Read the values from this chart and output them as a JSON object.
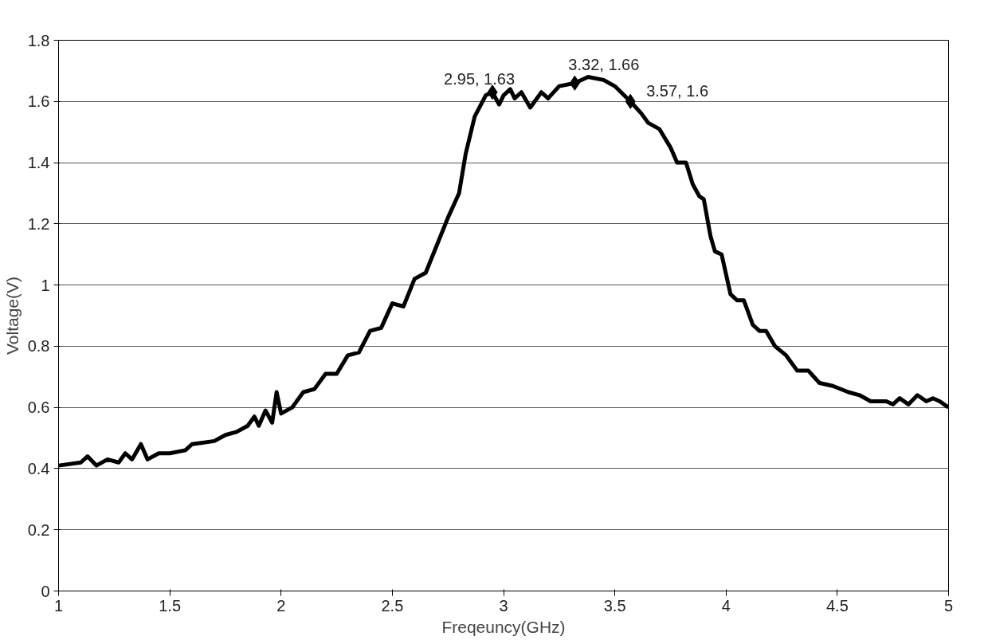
{
  "chart_data": {
    "type": "line",
    "xlabel": "Freqeuncy(GHz)",
    "ylabel": "Voltage(V)",
    "xlim": [
      1,
      5
    ],
    "ylim": [
      0,
      1.8
    ],
    "xticks": [
      1,
      1.5,
      2,
      2.5,
      3,
      3.5,
      4,
      4.5,
      5
    ],
    "yticks": [
      0,
      0.2,
      0.4,
      0.6,
      0.8,
      1,
      1.2,
      1.4,
      1.6,
      1.8
    ],
    "grid": "y",
    "line_style": "solid",
    "series": [
      {
        "color": "#000000",
        "marker": "none",
        "x": [
          1.0,
          1.1,
          1.13,
          1.17,
          1.22,
          1.27,
          1.3,
          1.33,
          1.37,
          1.4,
          1.45,
          1.5,
          1.57,
          1.6,
          1.7,
          1.75,
          1.8,
          1.85,
          1.88,
          1.9,
          1.93,
          1.96,
          1.98,
          2.0,
          2.05,
          2.1,
          2.15,
          2.2,
          2.25,
          2.3,
          2.35,
          2.4,
          2.45,
          2.5,
          2.55,
          2.6,
          2.65,
          2.7,
          2.75,
          2.8,
          2.83,
          2.87,
          2.92,
          2.95,
          2.98,
          3.0,
          3.03,
          3.05,
          3.08,
          3.12,
          3.17,
          3.2,
          3.25,
          3.32,
          3.38,
          3.45,
          3.5,
          3.57,
          3.62,
          3.65,
          3.7,
          3.75,
          3.78,
          3.82,
          3.85,
          3.88,
          3.9,
          3.93,
          3.95,
          3.98,
          4.02,
          4.05,
          4.08,
          4.12,
          4.15,
          4.18,
          4.22,
          4.27,
          4.32,
          4.37,
          4.42,
          4.48,
          4.55,
          4.6,
          4.65,
          4.72,
          4.75,
          4.78,
          4.82,
          4.86,
          4.9,
          4.93,
          4.96,
          5.0
        ],
        "values": [
          0.41,
          0.42,
          0.44,
          0.41,
          0.43,
          0.42,
          0.45,
          0.43,
          0.48,
          0.43,
          0.45,
          0.45,
          0.46,
          0.48,
          0.49,
          0.51,
          0.52,
          0.54,
          0.57,
          0.54,
          0.59,
          0.55,
          0.65,
          0.58,
          0.6,
          0.65,
          0.66,
          0.71,
          0.71,
          0.77,
          0.78,
          0.85,
          0.86,
          0.94,
          0.93,
          1.02,
          1.04,
          1.13,
          1.22,
          1.3,
          1.43,
          1.55,
          1.62,
          1.63,
          1.59,
          1.62,
          1.64,
          1.61,
          1.63,
          1.58,
          1.63,
          1.61,
          1.65,
          1.66,
          1.68,
          1.67,
          1.65,
          1.6,
          1.56,
          1.53,
          1.51,
          1.45,
          1.4,
          1.4,
          1.33,
          1.29,
          1.28,
          1.16,
          1.11,
          1.1,
          0.97,
          0.95,
          0.95,
          0.87,
          0.85,
          0.85,
          0.8,
          0.77,
          0.72,
          0.72,
          0.68,
          0.67,
          0.65,
          0.64,
          0.62,
          0.62,
          0.61,
          0.63,
          0.61,
          0.64,
          0.62,
          0.63,
          0.62,
          0.6
        ]
      },
      {
        "type": "scatter",
        "color": "#000000",
        "marker": "diamond",
        "x": [
          2.95,
          3.32,
          3.57
        ],
        "values": [
          1.63,
          1.66,
          1.6
        ]
      }
    ],
    "annotations": [
      {
        "text": "2.95, 1.63",
        "x": 2.95,
        "y": 1.63
      },
      {
        "text": "3.32, 1.66",
        "x": 3.32,
        "y": 1.66
      },
      {
        "text": "3.57, 1.6",
        "x": 3.57,
        "y": 1.6
      }
    ]
  }
}
